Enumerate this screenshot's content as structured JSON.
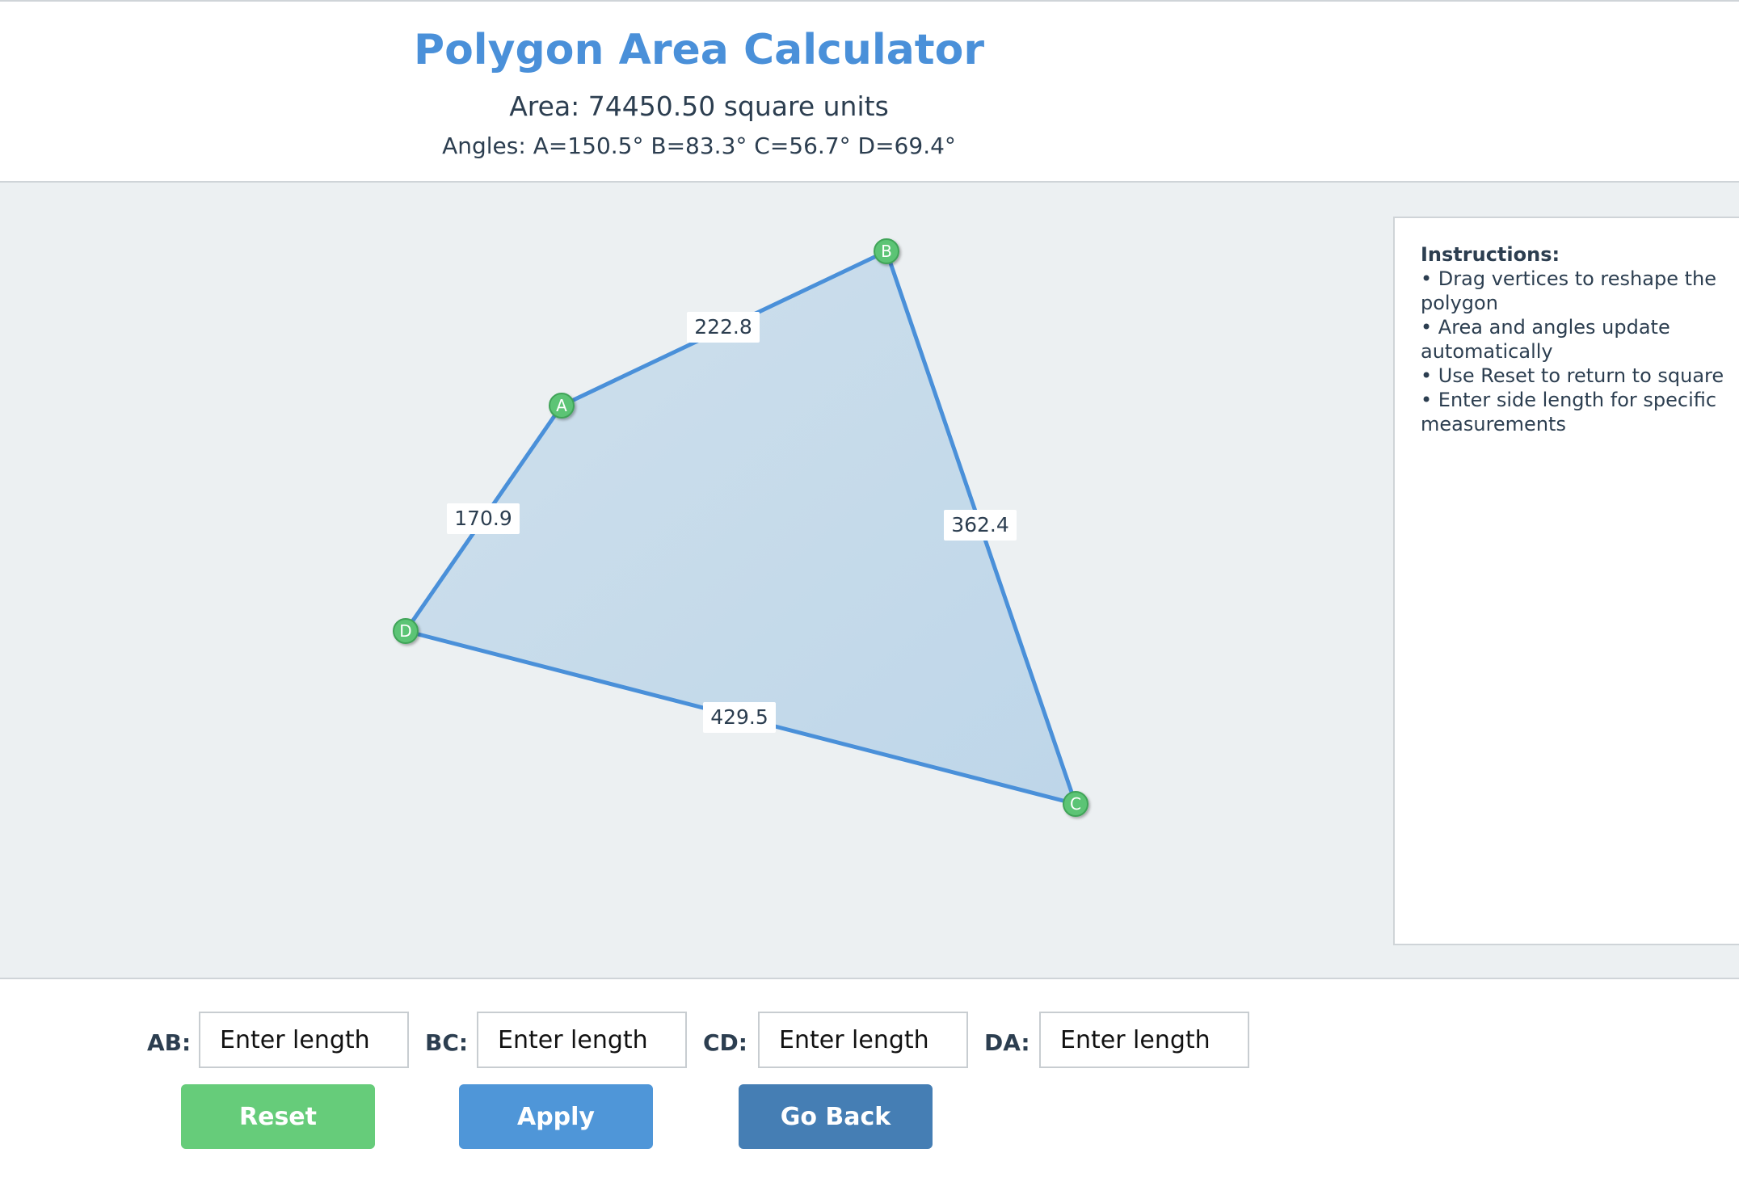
{
  "header": {
    "title": "Polygon Area Calculator",
    "area_text": "Area: 74450.50 square units",
    "angles_text": "Angles: A=150.5° B=83.3° C=56.7° D=69.4°"
  },
  "polygon": {
    "fill_color": "#c6dae9",
    "edge_color": "#4a90d9",
    "vertex_color": "#5cc474",
    "vertices": [
      {
        "label": "A"
      },
      {
        "label": "B"
      },
      {
        "label": "C"
      },
      {
        "label": "D"
      }
    ],
    "edge_labels": {
      "AB": "222.8",
      "BC": "362.4",
      "CD": "429.5",
      "DA": "170.9"
    }
  },
  "instructions": {
    "title": "Instructions:",
    "lines": [
      "• Drag vertices to reshape the",
      "polygon",
      "• Area and angles update",
      "automatically",
      "• Use Reset to return to square",
      "• Enter side length for specific",
      "measurements"
    ]
  },
  "controls": {
    "fields": [
      {
        "label": "AB:",
        "placeholder": "Enter length"
      },
      {
        "label": "BC:",
        "placeholder": "Enter length"
      },
      {
        "label": "CD:",
        "placeholder": "Enter length"
      },
      {
        "label": "DA:",
        "placeholder": "Enter length"
      }
    ],
    "reset_label": "Reset",
    "apply_label": "Apply",
    "back_label": "Go Back"
  }
}
